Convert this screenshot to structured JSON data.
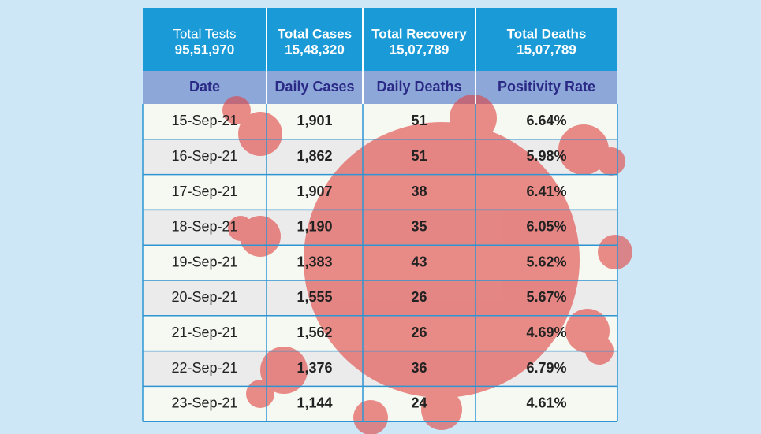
{
  "summary": [
    {
      "label": "Total Tests",
      "value": "95,51,970"
    },
    {
      "label": "Total Cases",
      "value": "15,48,320"
    },
    {
      "label": "Total Recovery",
      "value": "15,07,789"
    },
    {
      "label": "Total Deaths",
      "value": "15,07,789"
    }
  ],
  "table": {
    "columns": [
      "Date",
      "Daily Cases",
      "Daily Deaths",
      "Positivity Rate"
    ],
    "rows": [
      [
        "15-Sep-21",
        "1,901",
        "51",
        "6.64%"
      ],
      [
        "16-Sep-21",
        "1,862",
        "51",
        "5.98%"
      ],
      [
        "17-Sep-21",
        "1,907",
        "38",
        "6.41%"
      ],
      [
        "18-Sep-21",
        "1,190",
        "35",
        "6.05%"
      ],
      [
        "19-Sep-21",
        "1,383",
        "43",
        "5.62%"
      ],
      [
        "20-Sep-21",
        "1,555",
        "26",
        "5.67%"
      ],
      [
        "21-Sep-21",
        "1,562",
        "26",
        "4.69%"
      ],
      [
        "22-Sep-21",
        "1,376",
        "36",
        "6.79%"
      ],
      [
        "23-Sep-21",
        "1,144",
        "24",
        "4.61%"
      ]
    ]
  }
}
